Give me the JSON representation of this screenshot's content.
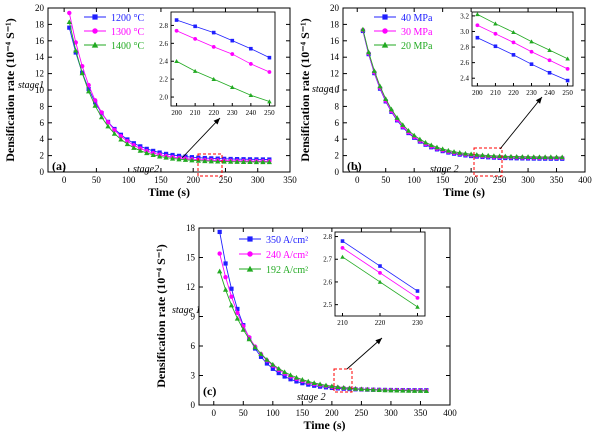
{
  "chart_data": [
    {
      "panel_label": "(a)",
      "type": "line",
      "xlabel": "Time (s)",
      "ylabel": "Densification rate (10⁻⁴ S⁻¹)",
      "xlim": [
        -25,
        350
      ],
      "ylim": [
        0,
        20
      ],
      "xticks": [
        0,
        50,
        100,
        150,
        200,
        250,
        300,
        350
      ],
      "yticks": [
        0,
        2,
        4,
        6,
        8,
        10,
        12,
        14,
        16,
        18,
        20
      ],
      "legend_position": "top-left",
      "annotations": [
        "stage1",
        "stage2"
      ],
      "curve": {
        "t_start": 8,
        "t_end": 320,
        "dt": 10
      },
      "series": [
        {
          "name": "1200 °C",
          "color": "#2020ff",
          "marker": "square",
          "y0": 17.6,
          "y_inf": 1.5,
          "tau": 48
        },
        {
          "name": "1300 °C",
          "color": "#ff00ff",
          "marker": "circle",
          "y0": 19.4,
          "y_inf": 1.3,
          "tau": 45
        },
        {
          "name": "1400 °C",
          "color": "#22aa22",
          "marker": "triangle",
          "y0": 18.3,
          "y_inf": 1.2,
          "tau": 44
        }
      ],
      "inset": {
        "xlim": [
          197,
          253
        ],
        "ylim": [
          1.9,
          2.95
        ],
        "xticks": [
          200,
          210,
          220,
          230,
          240,
          250
        ],
        "yticks": [
          2.0,
          2.2,
          2.4,
          2.6,
          2.8
        ],
        "x": [
          200,
          210,
          220,
          230,
          240,
          250
        ],
        "series": [
          {
            "name": "1200 °C",
            "values": [
              2.86,
              2.79,
              2.72,
              2.63,
              2.54,
              2.44
            ]
          },
          {
            "name": "1300 °C",
            "values": [
              2.74,
              2.65,
              2.56,
              2.48,
              2.37,
              2.28
            ]
          },
          {
            "name": "1400 °C",
            "values": [
              2.4,
              2.29,
              2.2,
              2.11,
              2.02,
              1.95
            ]
          }
        ]
      }
    },
    {
      "panel_label": "(b)",
      "type": "line",
      "xlabel": "Time (s)",
      "ylabel": "Densification rate (10⁻⁴ S⁻¹)",
      "xlim": [
        -25,
        400
      ],
      "ylim": [
        0,
        20
      ],
      "xticks": [
        0,
        50,
        100,
        150,
        200,
        250,
        300,
        350,
        400
      ],
      "yticks": [
        0,
        2,
        4,
        6,
        8,
        10,
        12,
        14,
        16,
        18,
        20
      ],
      "legend_position": "top-left",
      "annotations": [
        "stage 1",
        "stage 2"
      ],
      "curve": {
        "t_start": 10,
        "t_end": 360,
        "dt": 10
      },
      "series": [
        {
          "name": "40 MPa",
          "color": "#2020ff",
          "marker": "square",
          "y0": 17.2,
          "y_inf": 1.6,
          "tau": 50
        },
        {
          "name": "30 MPa",
          "color": "#ff00ff",
          "marker": "circle",
          "y0": 17.3,
          "y_inf": 1.7,
          "tau": 50
        },
        {
          "name": "20 MPa",
          "color": "#22aa22",
          "marker": "triangle",
          "y0": 17.4,
          "y_inf": 1.8,
          "tau": 51
        }
      ],
      "inset": {
        "xlim": [
          197,
          253
        ],
        "ylim": [
          2.3,
          3.25
        ],
        "xticks": [
          200,
          210,
          220,
          230,
          240,
          250
        ],
        "yticks": [
          2.4,
          2.6,
          2.8,
          3.0,
          3.2
        ],
        "x": [
          200,
          210,
          220,
          230,
          240,
          250
        ],
        "series": [
          {
            "name": "40 MPa",
            "values": [
              2.92,
              2.81,
              2.7,
              2.58,
              2.47,
              2.37
            ]
          },
          {
            "name": "30 MPa",
            "values": [
              3.08,
              2.97,
              2.86,
              2.74,
              2.63,
              2.52
            ]
          },
          {
            "name": "20 MPa",
            "values": [
              3.22,
              3.1,
              2.99,
              2.87,
              2.76,
              2.65
            ]
          }
        ]
      }
    },
    {
      "panel_label": "(c)",
      "type": "line",
      "xlabel": "Time (s)",
      "ylabel": "Densification rate (10⁻⁴ S⁻¹)",
      "xlim": [
        -25,
        400
      ],
      "ylim": [
        0,
        18
      ],
      "xticks": [
        0,
        50,
        100,
        150,
        200,
        250,
        300,
        350,
        400
      ],
      "yticks": [
        0,
        3,
        6,
        9,
        12,
        15,
        18
      ],
      "legend_position": "top-left",
      "annotations": [
        "stage 1",
        "stage 2"
      ],
      "curve": {
        "t_start": 10,
        "t_end": 360,
        "dt": 10
      },
      "series": [
        {
          "name": "350 A/cm²",
          "color": "#2020ff",
          "marker": "square",
          "y0": 17.6,
          "y_inf": 1.5,
          "tau": 45
        },
        {
          "name": "240 A/cm²",
          "color": "#ff00ff",
          "marker": "circle",
          "y0": 15.4,
          "y_inf": 1.45,
          "tau": 53
        },
        {
          "name": "192 A/cm²",
          "color": "#22aa22",
          "marker": "triangle",
          "y0": 13.6,
          "y_inf": 1.4,
          "tau": 60
        }
      ],
      "inset": {
        "xlim": [
          208,
          232
        ],
        "ylim": [
          2.45,
          2.82
        ],
        "xticks": [
          210,
          220,
          230
        ],
        "yticks": [
          2.5,
          2.6,
          2.7,
          2.8
        ],
        "x": [
          210,
          220,
          230
        ],
        "series": [
          {
            "name": "350 A/cm²",
            "values": [
              2.78,
              2.67,
              2.56
            ]
          },
          {
            "name": "240 A/cm²",
            "values": [
              2.75,
              2.64,
              2.53
            ]
          },
          {
            "name": "192 A/cm²",
            "values": [
              2.71,
              2.6,
              2.49
            ]
          }
        ]
      }
    }
  ]
}
